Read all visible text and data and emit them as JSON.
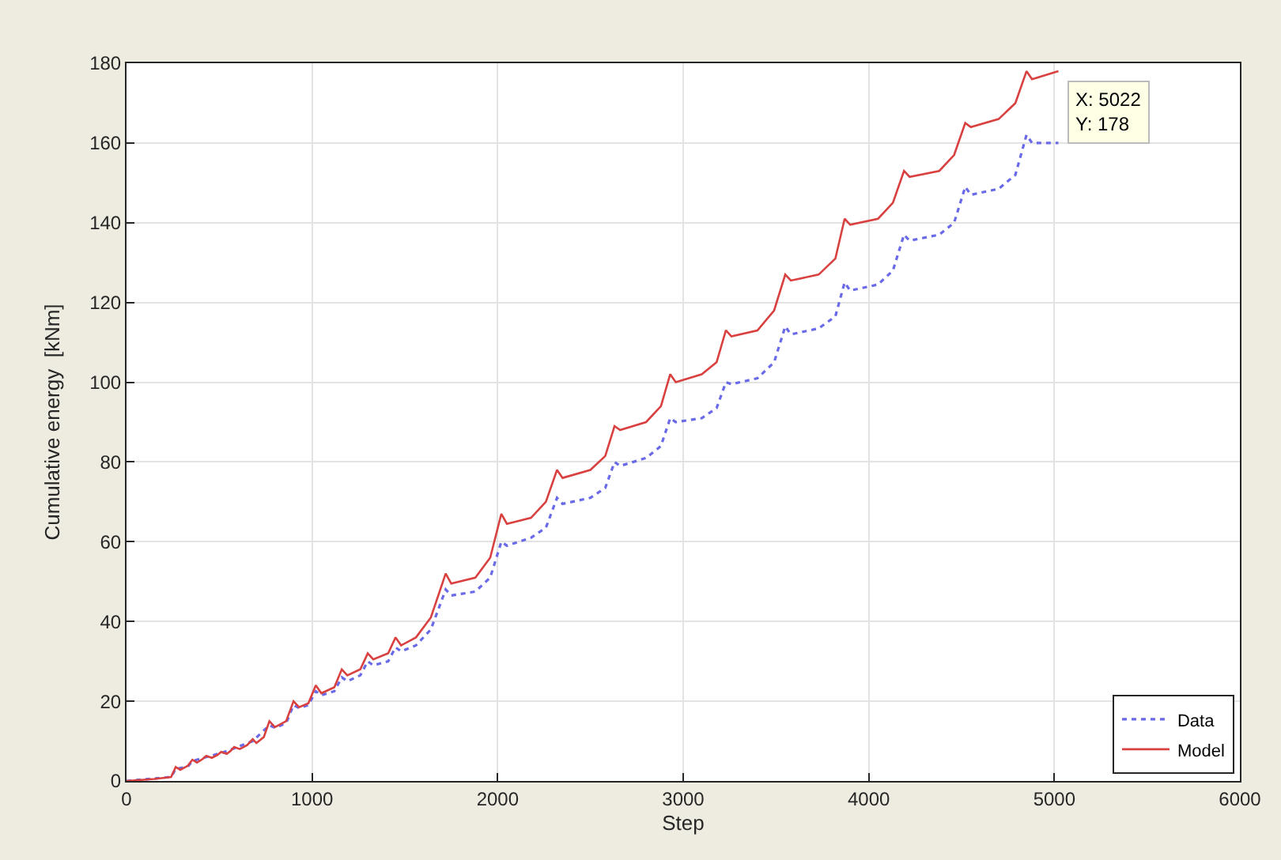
{
  "chart_data": {
    "type": "line",
    "xlabel": "Step",
    "ylabel": "Cumulative energy  [kNm]",
    "xlim": [
      0,
      6000
    ],
    "xticks": [
      0,
      1000,
      2000,
      3000,
      4000,
      5000,
      6000
    ],
    "ylim": [
      0,
      180
    ],
    "yticks": [
      0,
      20,
      40,
      60,
      80,
      100,
      120,
      140,
      160,
      180
    ],
    "grid": true,
    "legend": "bottom right",
    "marker": "none",
    "annotations": [
      {
        "text": "X: 5022\nY: 178",
        "x": 5022,
        "y": 178
      }
    ],
    "series": [
      {
        "name": "Data",
        "color": "#6a6ae8",
        "line_style": "dotted",
        "x": [
          0,
          240,
          265,
          330,
          355,
          430,
          510,
          580,
          680,
          770,
          800,
          860,
          900,
          930,
          980,
          1020,
          1050,
          1120,
          1160,
          1190,
          1260,
          1300,
          1330,
          1410,
          1450,
          1480,
          1560,
          1640,
          1720,
          1750,
          1880,
          1960,
          2020,
          2050,
          2180,
          2260,
          2320,
          2350,
          2500,
          2580,
          2630,
          2660,
          2800,
          2880,
          2930,
          2960,
          3100,
          3180,
          3230,
          3260,
          3400,
          3490,
          3550,
          3580,
          3730,
          3820,
          3870,
          3900,
          4050,
          4130,
          4190,
          4220,
          4380,
          4460,
          4520,
          4550,
          4700,
          4790,
          4850,
          4880,
          5022
        ],
        "values": [
          0,
          1,
          3,
          3.6,
          5,
          6,
          7,
          8.2,
          10,
          14,
          13.3,
          14.5,
          19,
          18.3,
          19,
          22.5,
          21.5,
          22.5,
          26,
          25,
          26.5,
          30,
          29,
          30,
          33.5,
          32.5,
          34,
          38,
          48,
          46.5,
          47.5,
          51,
          60,
          59,
          61,
          63.5,
          71,
          69.5,
          71,
          73.5,
          80,
          79,
          81,
          84,
          91,
          90,
          91,
          93.5,
          100,
          99.5,
          101,
          105,
          114,
          112,
          113.5,
          116.5,
          125,
          123,
          124.5,
          128,
          137,
          135.5,
          137,
          140,
          149,
          147,
          148.5,
          152,
          162,
          160,
          160
        ]
      },
      {
        "name": "Model",
        "color": "#d94040",
        "line_style": "solid",
        "x": [
          0,
          150,
          240,
          265,
          290,
          330,
          355,
          380,
          410,
          430,
          460,
          490,
          510,
          540,
          560,
          580,
          610,
          650,
          680,
          700,
          740,
          770,
          800,
          860,
          900,
          930,
          980,
          1020,
          1050,
          1120,
          1160,
          1190,
          1260,
          1300,
          1330,
          1410,
          1450,
          1480,
          1560,
          1640,
          1720,
          1750,
          1880,
          1960,
          2020,
          2050,
          2180,
          2260,
          2320,
          2350,
          2500,
          2580,
          2630,
          2660,
          2800,
          2880,
          2930,
          2960,
          3100,
          3180,
          3230,
          3260,
          3400,
          3490,
          3550,
          3580,
          3730,
          3820,
          3870,
          3900,
          4050,
          4130,
          4190,
          4220,
          4380,
          4460,
          4520,
          4550,
          4700,
          4790,
          4850,
          4880,
          5022
        ],
        "values": [
          0,
          0.5,
          1,
          3.5,
          2.8,
          3.8,
          5.3,
          4.6,
          5.5,
          6.3,
          5.8,
          6.5,
          7.3,
          6.8,
          7.5,
          8.5,
          8,
          9,
          10.5,
          9.5,
          11,
          15,
          13.5,
          15,
          20,
          18.5,
          19.5,
          24,
          22,
          23.5,
          28,
          26.5,
          28,
          32,
          30.5,
          32,
          36,
          34,
          36,
          41,
          52,
          49.5,
          51,
          56,
          67,
          64.5,
          66,
          70,
          78,
          76,
          78,
          81.5,
          89,
          88,
          90,
          94,
          102,
          100,
          102,
          105,
          113,
          111.5,
          113,
          118,
          127,
          125.5,
          127,
          131,
          141,
          139.5,
          141,
          145,
          153,
          151.5,
          153,
          157,
          165,
          164,
          166,
          170,
          178,
          176,
          178
        ]
      }
    ]
  }
}
